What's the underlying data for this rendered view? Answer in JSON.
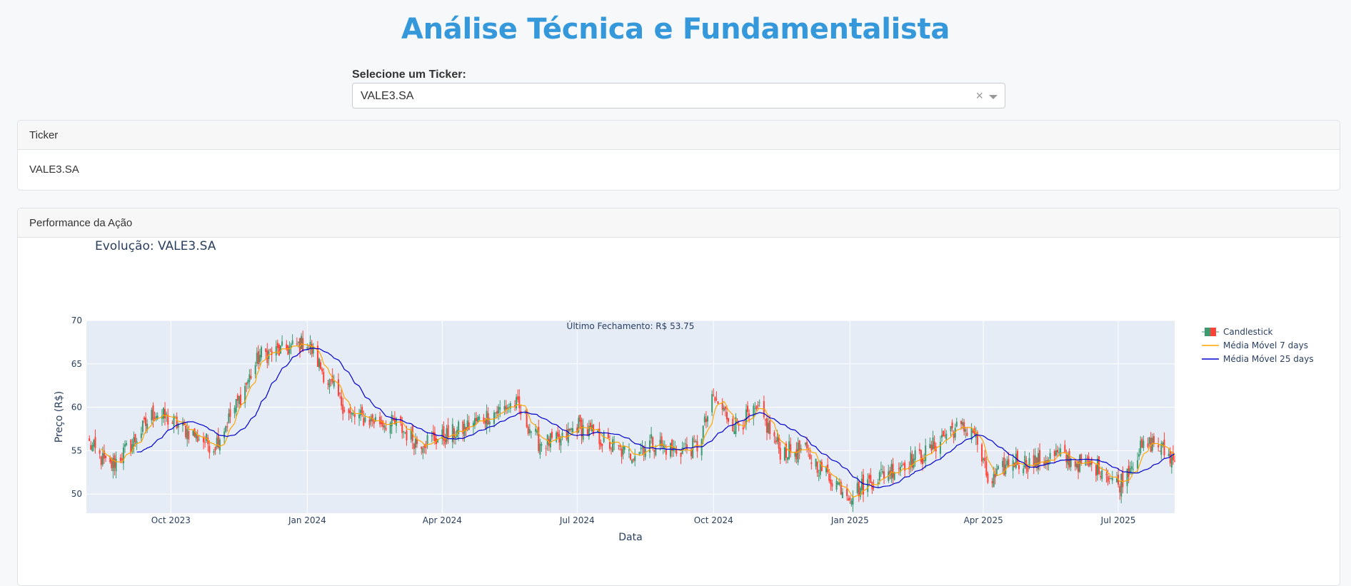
{
  "header": {
    "title": "Análise Técnica e Fundamentalista"
  },
  "selector": {
    "label": "Selecione um Ticker:",
    "value": "VALE3.SA",
    "clear": "×"
  },
  "ticker_card": {
    "header": "Ticker",
    "value": "VALE3.SA"
  },
  "performance_card": {
    "header": "Performance da Ação"
  },
  "colors": {
    "up": "#3d9970",
    "down": "#ff4136",
    "ma7": "#ffa500",
    "ma25": "#0000cd",
    "plot_bg": "#e5ecf6",
    "accent": "#3498db"
  },
  "chart_data": {
    "type": "candlestick",
    "title": "Evolução: VALE3.SA",
    "xlabel": "Data",
    "ylabel": "Preço (R$)",
    "annotation": "Último Fechamento: R$ 53.75",
    "x_range": [
      "2023-08-05",
      "2025-08-08"
    ],
    "ylim": [
      47.8,
      70
    ],
    "y_ticks": [
      50,
      55,
      60,
      65,
      70
    ],
    "x_ticks": [
      {
        "date": "2023-10-01",
        "label": "Oct 2023"
      },
      {
        "date": "2024-01-01",
        "label": "Jan 2024"
      },
      {
        "date": "2024-04-01",
        "label": "Apr 2024"
      },
      {
        "date": "2024-07-01",
        "label": "Jul 2024"
      },
      {
        "date": "2024-10-01",
        "label": "Oct 2024"
      },
      {
        "date": "2025-01-01",
        "label": "Jan 2025"
      },
      {
        "date": "2025-04-01",
        "label": "Apr 2025"
      },
      {
        "date": "2025-07-01",
        "label": "Jul 2025"
      }
    ],
    "legend_position": "top-right",
    "grid": true,
    "close_path": [
      [
        "2023-08-05",
        56.2
      ],
      [
        "2023-08-20",
        53.0
      ],
      [
        "2023-09-05",
        55.8
      ],
      [
        "2023-09-20",
        59.5
      ],
      [
        "2023-10-01",
        58.4
      ],
      [
        "2023-10-15",
        57.0
      ],
      [
        "2023-10-30",
        55.5
      ],
      [
        "2023-11-15",
        60.5
      ],
      [
        "2023-11-30",
        66.0
      ],
      [
        "2023-12-15",
        66.5
      ],
      [
        "2024-01-01",
        67.5
      ],
      [
        "2024-01-15",
        63.0
      ],
      [
        "2024-01-30",
        59.0
      ],
      [
        "2024-02-15",
        58.5
      ],
      [
        "2024-03-01",
        58.0
      ],
      [
        "2024-03-15",
        56.0
      ],
      [
        "2024-04-01",
        56.5
      ],
      [
        "2024-04-15",
        57.5
      ],
      [
        "2024-05-01",
        59.0
      ],
      [
        "2024-05-20",
        60.5
      ],
      [
        "2024-06-05",
        56.0
      ],
      [
        "2024-06-20",
        56.0
      ],
      [
        "2024-07-01",
        58.0
      ],
      [
        "2024-07-20",
        56.0
      ],
      [
        "2024-08-05",
        54.5
      ],
      [
        "2024-08-20",
        56.0
      ],
      [
        "2024-09-05",
        55.0
      ],
      [
        "2024-09-20",
        55.5
      ],
      [
        "2024-10-01",
        61.0
      ],
      [
        "2024-10-15",
        58.0
      ],
      [
        "2024-11-01",
        59.5
      ],
      [
        "2024-11-15",
        55.0
      ],
      [
        "2024-12-01",
        55.0
      ],
      [
        "2024-12-15",
        52.5
      ],
      [
        "2025-01-01",
        50.0
      ],
      [
        "2025-01-20",
        52.0
      ],
      [
        "2025-02-05",
        53.5
      ],
      [
        "2025-02-20",
        54.5
      ],
      [
        "2025-03-10",
        57.5
      ],
      [
        "2025-03-25",
        57.5
      ],
      [
        "2025-04-05",
        51.0
      ],
      [
        "2025-04-20",
        54.0
      ],
      [
        "2025-05-05",
        53.5
      ],
      [
        "2025-05-20",
        54.5
      ],
      [
        "2025-06-05",
        53.5
      ],
      [
        "2025-06-20",
        53.0
      ],
      [
        "2025-07-01",
        51.0
      ],
      [
        "2025-07-15",
        55.0
      ],
      [
        "2025-07-25",
        56.0
      ],
      [
        "2025-08-08",
        53.75
      ]
    ],
    "series": [
      {
        "name": "Candlestick"
      },
      {
        "name": "Média Móvel 7 days"
      },
      {
        "name": "Média Móvel 25 days"
      }
    ]
  }
}
